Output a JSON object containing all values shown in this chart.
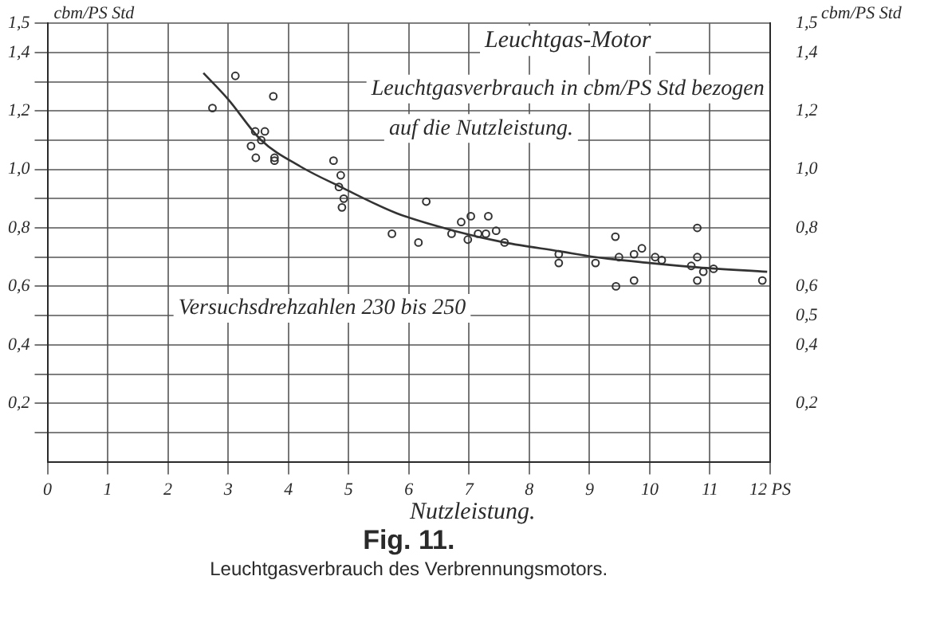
{
  "chart_data": {
    "type": "scatter",
    "title": "Fig. 11.",
    "subtitle": "Leuchtgasverbrauch des Verbrennungsmotors.",
    "xlabel": "Nutzleistung.",
    "ylabel": "cbm/PS Std",
    "y2label": "cbm/PS Std",
    "annotations": [
      "Leuchtgas-Motor",
      "Leuchtgasverbrauch in cbm/PS Std bezogen",
      "auf die Nutzleistung.",
      "Versuchsdrehzahlen 230 bis 250"
    ],
    "series": [
      {
        "color": "#333333",
        "marker": "circle",
        "x": [
          2.74,
          3.12,
          3.75,
          3.45,
          3.61,
          3.55,
          3.38,
          3.46,
          3.77,
          3.77,
          4.75,
          4.87,
          4.84,
          4.92,
          4.89,
          6.29,
          5.72,
          6.16,
          6.71,
          6.87,
          6.98,
          7.03,
          7.15,
          7.28,
          7.32,
          7.45,
          7.59,
          8.49,
          8.49,
          9.1,
          9.43,
          9.49,
          9.44,
          9.74,
          9.87,
          9.74,
          10.09,
          10.2,
          10.79,
          10.79,
          10.69,
          10.89,
          11.06,
          10.79,
          11.87
        ],
        "values": [
          1.21,
          1.32,
          1.25,
          1.13,
          1.13,
          1.1,
          1.08,
          1.04,
          1.04,
          1.03,
          1.03,
          0.98,
          0.94,
          0.9,
          0.87,
          0.89,
          0.78,
          0.75,
          0.78,
          0.82,
          0.76,
          0.84,
          0.78,
          0.78,
          0.84,
          0.79,
          0.75,
          0.71,
          0.68,
          0.68,
          0.77,
          0.7,
          0.6,
          0.71,
          0.73,
          0.62,
          0.7,
          0.69,
          0.8,
          0.7,
          0.67,
          0.65,
          0.66,
          0.62,
          0.62
        ]
      },
      {
        "type": "line",
        "color": "#333333",
        "marker": "none",
        "line_style": "solid",
        "x": [
          2.59,
          3.0,
          3.55,
          4.2,
          4.87,
          5.8,
          6.75,
          7.59,
          8.5,
          9.1,
          10.0,
          10.8,
          11.95
        ],
        "values": [
          1.33,
          1.24,
          1.1,
          1.01,
          0.94,
          0.85,
          0.79,
          0.75,
          0.72,
          0.7,
          0.68,
          0.665,
          0.65
        ]
      }
    ],
    "xlim": [
      0,
      12
    ],
    "xticks": [
      0,
      1,
      2,
      3,
      4,
      5,
      6,
      7,
      8,
      9,
      10,
      11,
      {
        "value": 12,
        "label": "12 PS"
      }
    ],
    "ylim": [
      0,
      1.5
    ],
    "yticks": [
      {
        "value": 0.1,
        "label": null
      },
      {
        "value": 0.2,
        "label": "0,2"
      },
      {
        "value": 0.3,
        "label": null
      },
      {
        "value": 0.4,
        "label": "0,4"
      },
      {
        "value": 0.5,
        "label": null
      },
      {
        "value": 0.6,
        "label": "0,6"
      },
      {
        "value": 0.7,
        "label": null
      },
      {
        "value": 0.8,
        "label": "0,8"
      },
      {
        "value": 0.9,
        "label": null
      },
      {
        "value": 1.0,
        "label": "1,0"
      },
      {
        "value": 1.1,
        "label": null
      },
      {
        "value": 1.2,
        "label": "1,2"
      },
      {
        "value": 1.3,
        "label": null
      },
      {
        "value": 1.4,
        "label": "1,4"
      },
      {
        "value": 1.5,
        "label": "1,5"
      }
    ],
    "y2lim": [
      0,
      1.5
    ],
    "y2ticks": [
      {
        "value": 0.2,
        "label": "0,2"
      },
      {
        "value": 0.4,
        "label": "0,4"
      },
      {
        "value": 0.5,
        "label": "0,5"
      },
      {
        "value": 0.6,
        "label": "0,6"
      },
      {
        "value": 0.8,
        "label": "0,8"
      },
      {
        "value": 1.0,
        "label": "1,0"
      },
      {
        "value": 1.2,
        "label": "1,2"
      },
      {
        "value": 1.4,
        "label": "1,4"
      },
      {
        "value": 1.5,
        "label": "1,5"
      }
    ],
    "grid": true,
    "legend": false
  }
}
